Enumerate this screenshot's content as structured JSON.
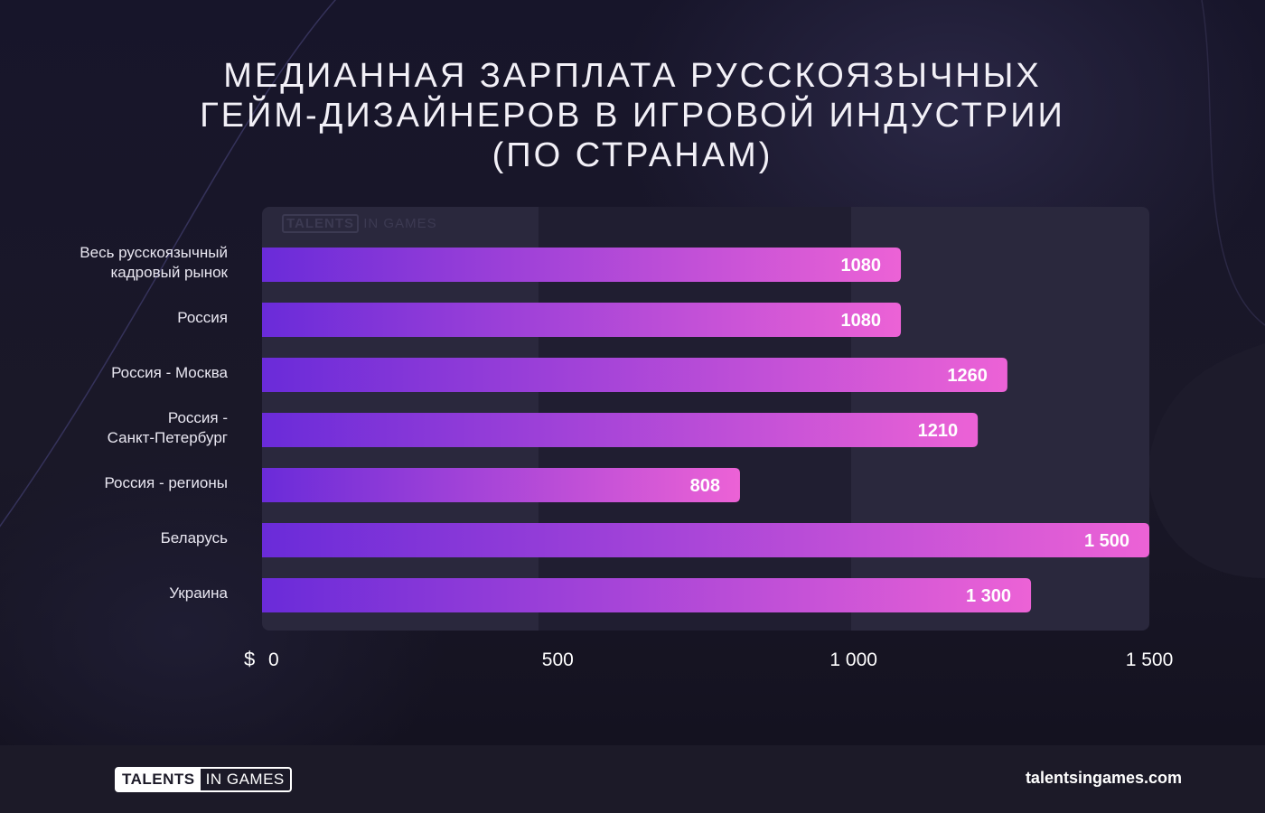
{
  "title_lines": [
    "МЕДИАННАЯ ЗАРПЛАТА РУССКОЯЗЫЧНЫХ",
    "ГЕЙМ-ДИЗАЙНЕРОВ В ИГРОВОЙ ИНДУСТРИИ",
    "(ПО СТРАНАМ)"
  ],
  "watermark": {
    "box": "TALENTS",
    "rest": "IN GAMES"
  },
  "chart_data": {
    "type": "bar",
    "orientation": "horizontal",
    "title": "МЕДИАННАЯ ЗАРПЛАТА РУССКОЯЗЫЧНЫХ ГЕЙМ-ДИЗАЙНЕРОВ В ИГРОВОЙ ИНДУСТРИИ (ПО СТРАНАМ)",
    "categories": [
      [
        "Весь русскоязычный",
        "кадровый рынок"
      ],
      [
        "Россия"
      ],
      [
        "Россия - Москва"
      ],
      [
        "Россия -",
        "Санкт-Петербург"
      ],
      [
        "Россия - регионы"
      ],
      [
        "Беларусь"
      ],
      [
        "Украина"
      ]
    ],
    "values": [
      1080,
      1080,
      1260,
      1210,
      808,
      1500,
      1300
    ],
    "value_labels": [
      "1080",
      "1080",
      "1260",
      "1210",
      "808",
      "1 500",
      "1 300"
    ],
    "xlim": [
      0,
      1500
    ],
    "x_unit": "$",
    "x_ticks": [
      0,
      500,
      1000,
      1500
    ],
    "x_tick_labels": [
      "0",
      "500",
      "1 000",
      "1 500"
    ],
    "grid": "alternating bands",
    "colors": {
      "bar_start": "#6a2bd9",
      "bar_end": "#ec62d6",
      "band": "#201e31",
      "plot_bg": "#2a283d"
    }
  },
  "footer": {
    "logo_box": "TALENTS",
    "logo_rest": "IN GAMES",
    "site": "talentsingames.com"
  }
}
